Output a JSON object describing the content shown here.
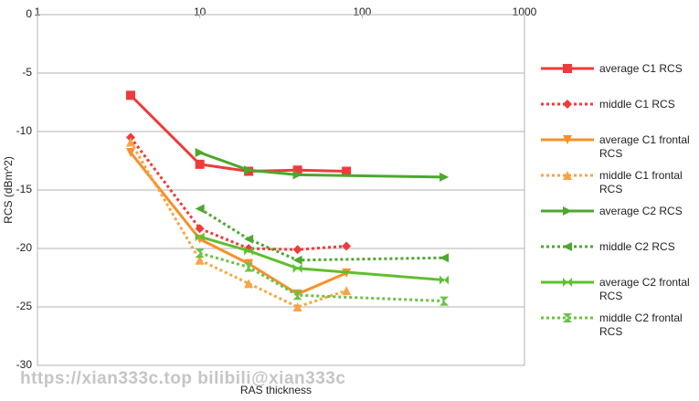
{
  "chart_data": {
    "type": "line",
    "x_label": "RAS thickness",
    "y_label": "RCS (dBm^2)",
    "xlog": true,
    "xlim": [
      1,
      1000
    ],
    "xticks": [
      1,
      10,
      100,
      1000
    ],
    "ylim": [
      -30,
      0
    ],
    "yticks": [
      0,
      -5,
      -10,
      -15,
      -20,
      -25,
      -30
    ],
    "grid": true,
    "legend": "right",
    "watermark": "https://xian333c.top bilibili@xian333c",
    "series": [
      {
        "name": "average C1 RCS",
        "color": "#ee3b3b",
        "dashed": false,
        "marker": "square",
        "x": [
          3.75,
          10,
          20,
          40,
          80
        ],
        "values": [
          -6.9,
          -12.8,
          -13.4,
          -13.3,
          -13.4
        ]
      },
      {
        "name": "middle C1 RCS",
        "color": "#ee3b3b",
        "dashed": true,
        "marker": "diamond",
        "x": [
          3.75,
          10,
          20,
          40,
          80
        ],
        "values": [
          -10.5,
          -18.3,
          -20.0,
          -20.1,
          -19.8
        ]
      },
      {
        "name": "average C1 frontal RCS",
        "color": "#f7902a",
        "dashed": false,
        "marker": "tri-down",
        "x": [
          3.75,
          10,
          20,
          40,
          80
        ],
        "values": [
          -11.8,
          -19.2,
          -21.3,
          -23.9,
          -22.1
        ]
      },
      {
        "name": "middle C1 frontal RCS",
        "color": "#f9a445",
        "dashed": true,
        "marker": "tri-up",
        "x": [
          3.75,
          10,
          20,
          40,
          80
        ],
        "values": [
          -10.9,
          -21.0,
          -23.0,
          -25.0,
          -23.6
        ]
      },
      {
        "name": "average C2 RCS",
        "color": "#4ea72e",
        "dashed": false,
        "marker": "tri-right",
        "x": [
          10,
          20,
          40,
          320
        ],
        "values": [
          -11.8,
          -13.3,
          -13.7,
          -13.9
        ]
      },
      {
        "name": "middle C2 RCS",
        "color": "#4ea72e",
        "dashed": true,
        "marker": "tri-left",
        "x": [
          10,
          20,
          40,
          320
        ],
        "values": [
          -16.6,
          -19.2,
          -21.0,
          -20.8
        ]
      },
      {
        "name": "average C2 frontal RCS",
        "color": "#5fbf2e",
        "dashed": false,
        "marker": "bowtie",
        "x": [
          10,
          20,
          40,
          320
        ],
        "values": [
          -19.0,
          -20.2,
          -21.7,
          -22.7
        ]
      },
      {
        "name": "middle C2 frontal RCS",
        "color": "#6cc04a",
        "dashed": true,
        "marker": "hourglass",
        "x": [
          10,
          20,
          40,
          320
        ],
        "values": [
          -20.4,
          -21.6,
          -24.0,
          -24.5
        ]
      }
    ]
  }
}
